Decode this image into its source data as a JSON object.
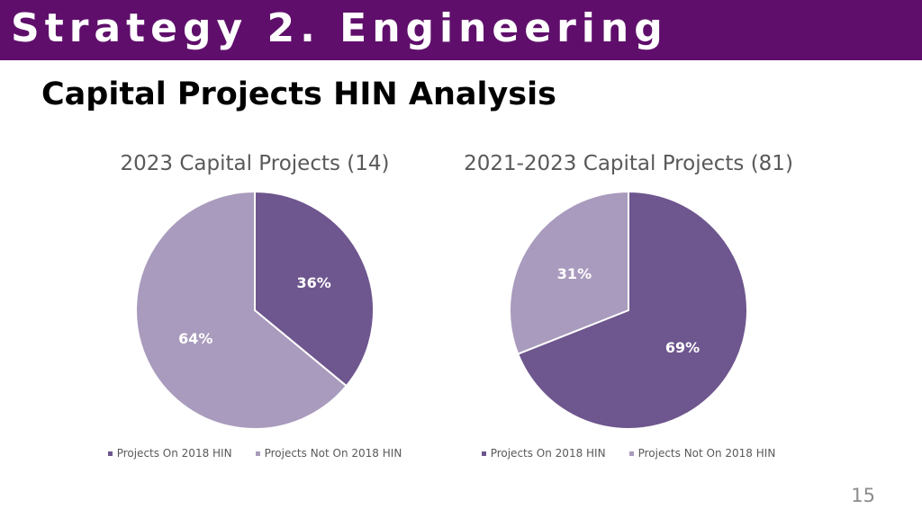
{
  "banner": {
    "title": "Strategy 2. Engineering"
  },
  "subtitle": "Capital Projects HIN Analysis",
  "colors": {
    "banner": "#5f0f6b",
    "on_hin": "#6e568e",
    "not_on_hin": "#a99bbd"
  },
  "chart_data": [
    {
      "type": "pie",
      "title": "2023 Capital Projects (14)",
      "categories": [
        "Projects On 2018 HIN",
        "Projects Not On 2018 HIN"
      ],
      "values": [
        36,
        64
      ],
      "labels": [
        "36%",
        "64%"
      ],
      "legend": "bottom"
    },
    {
      "type": "pie",
      "title": "2021-2023 Capital Projects (81)",
      "categories": [
        "Projects On 2018 HIN",
        "Projects Not On 2018 HIN"
      ],
      "values": [
        69,
        31
      ],
      "labels": [
        "69%",
        "31%"
      ],
      "legend": "bottom"
    }
  ],
  "page_number": "15"
}
